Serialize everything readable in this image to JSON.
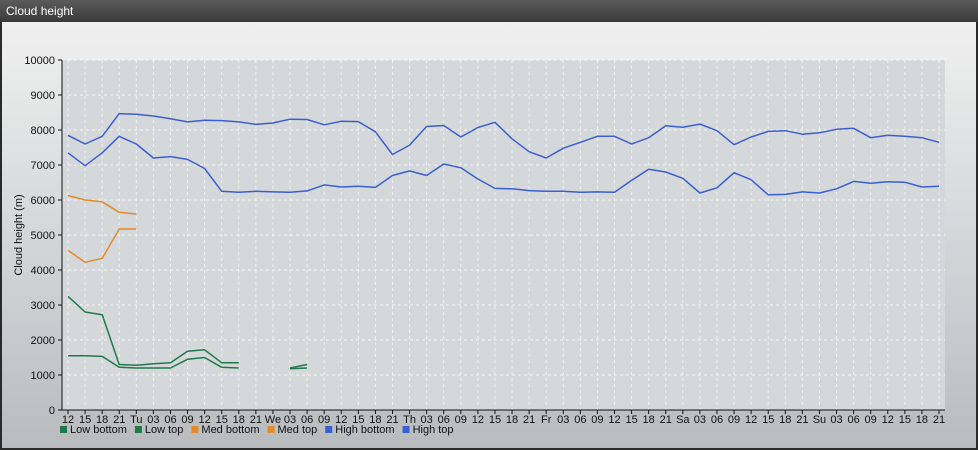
{
  "window": {
    "title": "Cloud height"
  },
  "chart_data": {
    "type": "line",
    "title": "",
    "xlabel": "",
    "ylabel": "Cloud height (m)",
    "ylim": [
      0,
      10000
    ],
    "yticks": [
      0,
      1000,
      2000,
      3000,
      4000,
      5000,
      6000,
      7000,
      8000,
      9000,
      10000
    ],
    "grid": true,
    "legend_position": "bottom-left",
    "categories": [
      "12",
      "15",
      "18",
      "21",
      "Tu",
      "03",
      "06",
      "09",
      "12",
      "15",
      "18",
      "21",
      "We",
      "03",
      "06",
      "09",
      "12",
      "15",
      "18",
      "21",
      "Th",
      "03",
      "06",
      "09",
      "12",
      "15",
      "18",
      "21",
      "Fr",
      "03",
      "06",
      "09",
      "12",
      "15",
      "18",
      "21",
      "Sa",
      "03",
      "06",
      "09",
      "12",
      "15",
      "18",
      "21",
      "Su",
      "03",
      "06",
      "09",
      "12",
      "15",
      "18",
      "21"
    ],
    "series": [
      {
        "name": "Low bottom",
        "color": "#1f7a4a",
        "values": [
          1550,
          1550,
          1530,
          1220,
          1200,
          1200,
          1200,
          1450,
          1500,
          1220,
          1200,
          null,
          null,
          1180,
          1200,
          null,
          null,
          null,
          null,
          null,
          null,
          null,
          null,
          null,
          null,
          null,
          null,
          null,
          null,
          null,
          null,
          null,
          null,
          null,
          null,
          null,
          null,
          null,
          null,
          null,
          null,
          null,
          null,
          null,
          null,
          null,
          null,
          null,
          null,
          null,
          null,
          null
        ]
      },
      {
        "name": "Low top",
        "color": "#1f7a4a",
        "values": [
          3250,
          2800,
          2720,
          1300,
          1280,
          1320,
          1350,
          1680,
          1720,
          1350,
          1350,
          null,
          null,
          1200,
          1300,
          null,
          null,
          null,
          null,
          null,
          null,
          null,
          null,
          null,
          null,
          null,
          null,
          null,
          null,
          null,
          null,
          null,
          null,
          null,
          null,
          null,
          null,
          null,
          null,
          null,
          null,
          null,
          null,
          null,
          null,
          null,
          null,
          null,
          null,
          null,
          null,
          null
        ]
      },
      {
        "name": "Med bottom",
        "color": "#e58a2b",
        "values": [
          4560,
          4220,
          4330,
          5170,
          5170,
          null,
          null,
          null,
          null,
          null,
          null,
          null,
          null,
          null,
          null,
          null,
          null,
          null,
          null,
          null,
          null,
          null,
          null,
          null,
          null,
          null,
          null,
          null,
          null,
          null,
          null,
          null,
          null,
          null,
          null,
          null,
          null,
          null,
          null,
          null,
          null,
          null,
          null,
          null,
          null,
          null,
          null,
          null,
          null,
          null,
          null,
          null
        ]
      },
      {
        "name": "Med top",
        "color": "#e58a2b",
        "values": [
          6130,
          6000,
          5950,
          5650,
          5600,
          null,
          null,
          null,
          null,
          null,
          null,
          null,
          null,
          null,
          null,
          null,
          null,
          null,
          null,
          null,
          null,
          null,
          null,
          null,
          null,
          null,
          null,
          null,
          null,
          null,
          null,
          null,
          null,
          null,
          null,
          null,
          null,
          null,
          null,
          null,
          null,
          null,
          null,
          null,
          null,
          null,
          null,
          null,
          null,
          null,
          null,
          null
        ]
      },
      {
        "name": "High bottom",
        "color": "#3a5fd0",
        "values": [
          7350,
          6980,
          7350,
          7820,
          7600,
          7200,
          7240,
          7160,
          6900,
          6250,
          6220,
          6250,
          6230,
          6220,
          6260,
          6430,
          6370,
          6390,
          6360,
          6700,
          6830,
          6700,
          7030,
          6920,
          6600,
          6330,
          6320,
          6270,
          6250,
          6250,
          6220,
          6230,
          6220,
          6560,
          6880,
          6800,
          6620,
          6200,
          6350,
          6780,
          6580,
          6150,
          6160,
          6230,
          6200,
          6320,
          6530,
          6480,
          6520,
          6510,
          6370,
          6390
        ]
      },
      {
        "name": "High top",
        "color": "#3a5fd0",
        "values": [
          7850,
          7600,
          7820,
          8470,
          8450,
          8400,
          8320,
          8230,
          8280,
          8270,
          8230,
          8160,
          8200,
          8310,
          8300,
          8150,
          8250,
          8240,
          7950,
          7300,
          7570,
          8100,
          8130,
          7800,
          8070,
          8220,
          7750,
          7380,
          7200,
          7480,
          7650,
          7820,
          7820,
          7600,
          7780,
          8120,
          8080,
          8170,
          7980,
          7580,
          7800,
          7960,
          7980,
          7880,
          7920,
          8020,
          8050,
          7780,
          7850,
          7820,
          7780,
          7650
        ]
      }
    ]
  }
}
